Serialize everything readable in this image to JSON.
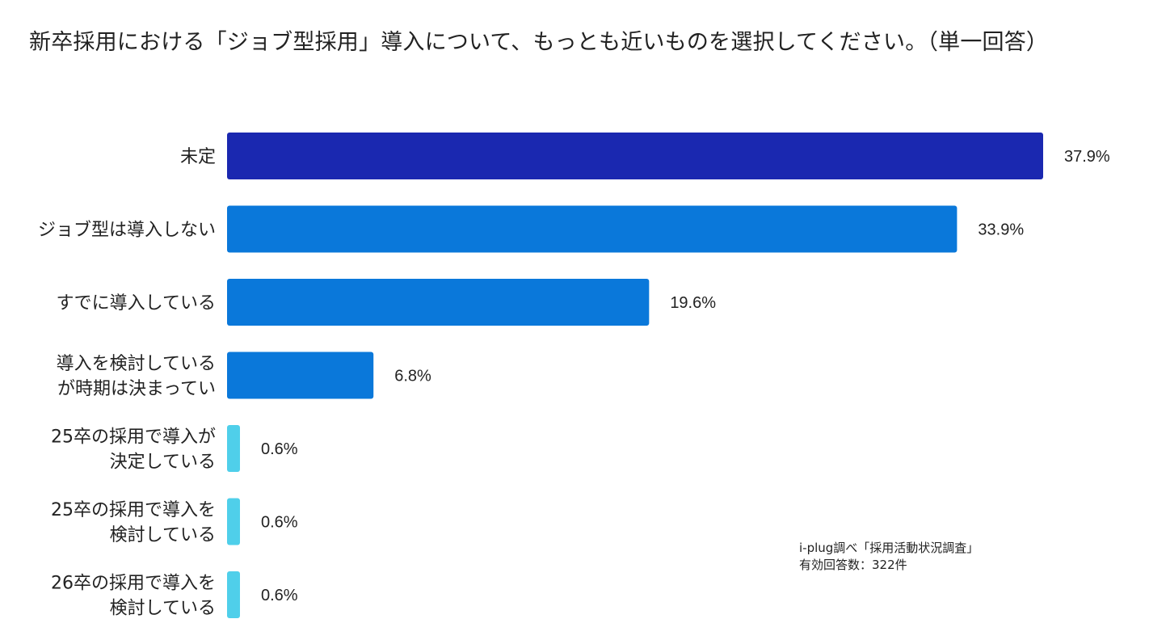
{
  "chart_data": {
    "type": "bar",
    "orientation": "horizontal",
    "title": "新卒採用における「ジョブ型採用」導入について、もっとも近いものを選択してください。（単一回答）",
    "unit": "%",
    "xlim": [
      0,
      37.9
    ],
    "grid": false,
    "legend": "none",
    "categories": [
      [
        "未定"
      ],
      [
        "ジョブ型は導入しない"
      ],
      [
        "すでに導入している"
      ],
      [
        "導入を検討している",
        "が時期は決まってい"
      ],
      [
        "25卒の採用で導入が",
        "決定している"
      ],
      [
        "25卒の採用で導入を",
        "検討している"
      ],
      [
        "26卒の採用で導入を",
        "検討している"
      ]
    ],
    "values": [
      37.9,
      33.9,
      19.6,
      6.8,
      0.6,
      0.6,
      0.6
    ],
    "value_labels": [
      "37.9%",
      "33.9%",
      "19.6%",
      "6.8%",
      "0.6%",
      "0.6%",
      "0.6%"
    ],
    "colors": [
      "#1a28b0",
      "#0a78da",
      "#0a78da",
      "#0a78da",
      "#4fcfea",
      "#4fcfea",
      "#4fcfea"
    ]
  },
  "source": {
    "line1": "i-plug調べ「採用活動状況調査」",
    "line2": "有効回答数：322件"
  }
}
